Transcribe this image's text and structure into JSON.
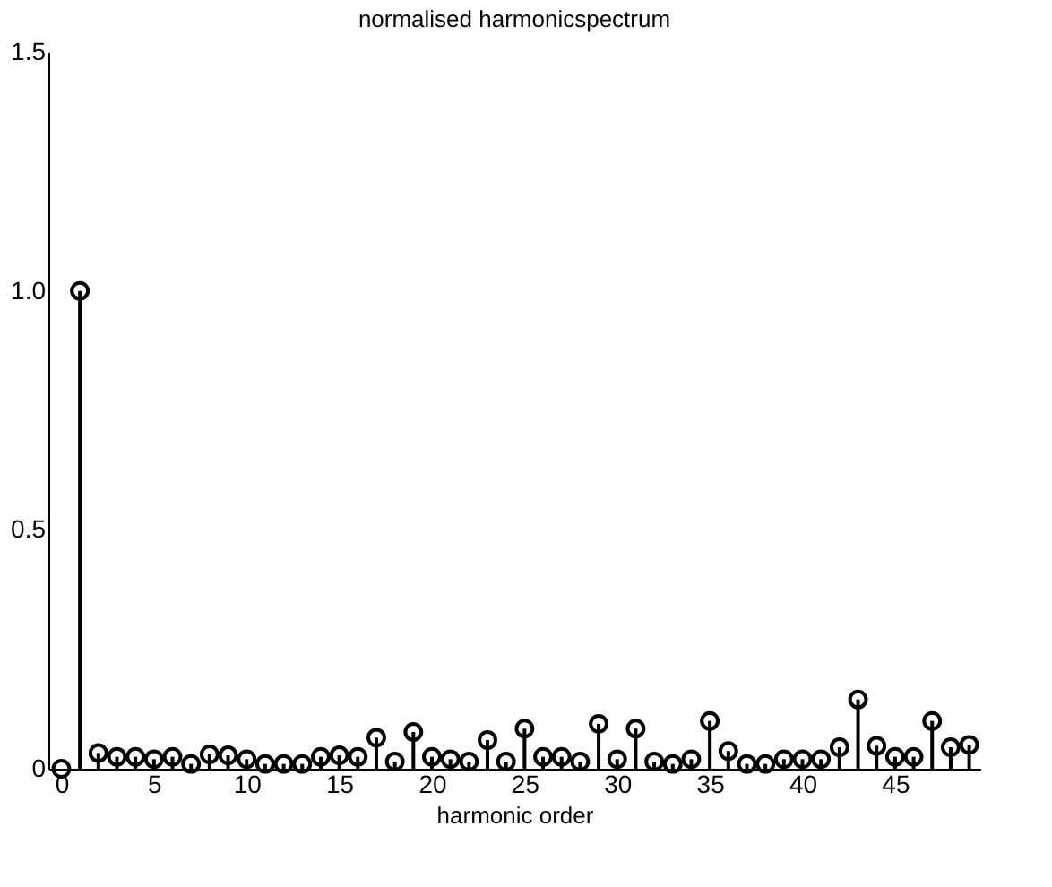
{
  "chart_data": {
    "type": "lollipop",
    "title": "normalised harmonicspectrum",
    "xlabel": "harmonic order",
    "x": [
      0,
      1,
      2,
      3,
      4,
      5,
      6,
      7,
      8,
      9,
      10,
      11,
      12,
      13,
      14,
      15,
      16,
      17,
      18,
      19,
      20,
      21,
      22,
      23,
      24,
      25,
      26,
      27,
      28,
      29,
      30,
      31,
      32,
      33,
      34,
      35,
      36,
      37,
      38,
      39,
      40,
      41,
      42,
      43,
      44,
      45,
      46,
      47,
      48,
      49
    ],
    "series": [
      {
        "color": "#000000",
        "values": [
          0,
          1.0,
          0.033,
          0.025,
          0.025,
          0.02,
          0.025,
          0.01,
          0.03,
          0.028,
          0.02,
          0.01,
          0.01,
          0.01,
          0.025,
          0.028,
          0.025,
          0.065,
          0.015,
          0.077,
          0.025,
          0.02,
          0.015,
          0.06,
          0.015,
          0.084,
          0.025,
          0.025,
          0.015,
          0.094,
          0.02,
          0.084,
          0.015,
          0.01,
          0.02,
          0.1,
          0.037,
          0.01,
          0.01,
          0.02,
          0.02,
          0.02,
          0.045,
          0.145,
          0.048,
          0.025,
          0.025,
          0.1,
          0.045,
          0.05
        ]
      }
    ],
    "xlim": [
      -0.7,
      49.6
    ],
    "ylim": [
      0,
      1.5
    ],
    "xticks": [
      0,
      5,
      10,
      15,
      20,
      25,
      30,
      35,
      40,
      45
    ],
    "yticks": [
      0,
      0.5,
      {
        "value": 1.0,
        "label": "1.0"
      },
      1.5
    ],
    "marker": "circle",
    "grid": false
  }
}
